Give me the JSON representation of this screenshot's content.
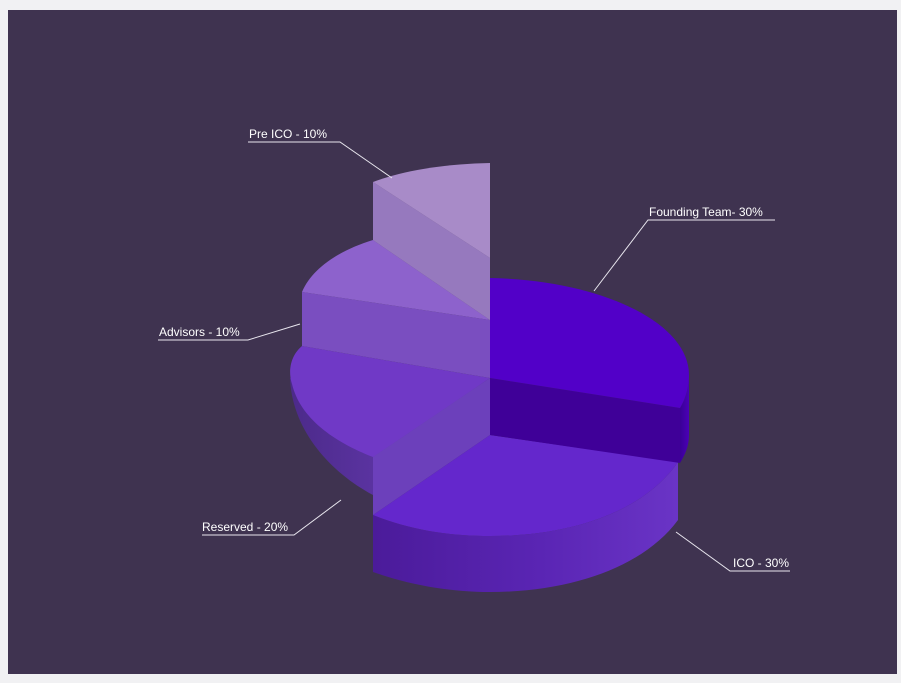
{
  "chart_data": {
    "type": "pie",
    "style": "3d exploded",
    "slices": [
      {
        "label": "Founding Team- 30%",
        "value": 30,
        "color": "#5200c8"
      },
      {
        "label": "ICO - 30%",
        "value": 30,
        "color": "#6327c8"
      },
      {
        "label": "Reserved - 20%",
        "value": 20,
        "color": "#6e37c4"
      },
      {
        "label": "Advisors - 10%",
        "value": 10,
        "color": "#8156bf"
      },
      {
        "label": "Pre ICO - 10%",
        "value": 10,
        "color": "#a386c4"
      }
    ],
    "background": "#3f3350"
  }
}
